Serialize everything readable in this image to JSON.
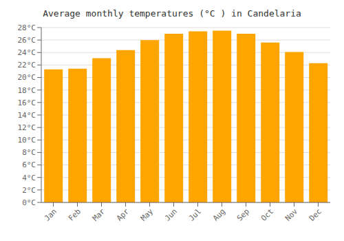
{
  "chart_data": {
    "type": "bar",
    "title": "Average monthly temperatures (°C ) in Candelaria",
    "categories": [
      "Jan",
      "Feb",
      "Mar",
      "Apr",
      "May",
      "Jun",
      "Jul",
      "Aug",
      "Sep",
      "Oct",
      "Nov",
      "Dec"
    ],
    "values": [
      21.3,
      21.4,
      23.1,
      24.4,
      26.0,
      27.0,
      27.4,
      27.5,
      27.0,
      25.6,
      24.1,
      22.3
    ],
    "color": "#FFA500",
    "ylim": [
      0,
      28
    ],
    "yticks": [
      {
        "value": 0,
        "label": "0°C"
      },
      {
        "value": 2,
        "label": "2°C"
      },
      {
        "value": 4,
        "label": "4°C"
      },
      {
        "value": 6,
        "label": "6°C"
      },
      {
        "value": 8,
        "label": "8°C"
      },
      {
        "value": 10,
        "label": "10°C"
      },
      {
        "value": 12,
        "label": "12°C"
      },
      {
        "value": 14,
        "label": "14°C"
      },
      {
        "value": 16,
        "label": "16°C"
      },
      {
        "value": 18,
        "label": "18°C"
      },
      {
        "value": 20,
        "label": "20°C"
      },
      {
        "value": 22,
        "label": "22°C"
      },
      {
        "value": 24,
        "label": "24°C"
      },
      {
        "value": 26,
        "label": "26°C"
      },
      {
        "value": 28,
        "label": "28°C"
      }
    ],
    "grid": true
  }
}
